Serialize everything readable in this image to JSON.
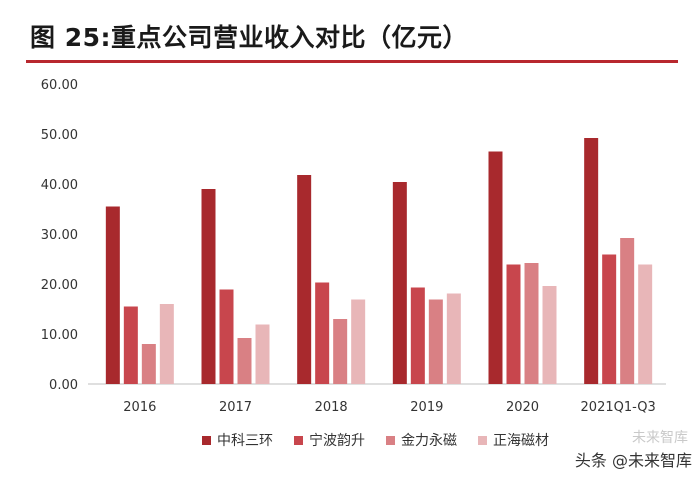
{
  "title": "图  25:重点公司营业收入对比（亿元）",
  "colors": {
    "accent": "#b8282e",
    "series": [
      "#a8292d",
      "#c8464d",
      "#d98084",
      "#e8b6b8"
    ]
  },
  "watermark": {
    "text": "头条 @未来智库",
    "logo": "未来智库"
  },
  "chart_data": {
    "type": "bar",
    "categories": [
      "2016",
      "2017",
      "2018",
      "2019",
      "2020",
      "2021Q1-Q3"
    ],
    "series": [
      {
        "name": "中科三环",
        "values": [
          35.5,
          39.0,
          41.8,
          40.4,
          46.5,
          49.2
        ]
      },
      {
        "name": "宁波韵升",
        "values": [
          15.5,
          18.9,
          20.3,
          19.3,
          23.9,
          25.9
        ]
      },
      {
        "name": "金力永磁",
        "values": [
          8.0,
          9.2,
          13.0,
          16.9,
          24.2,
          29.2
        ]
      },
      {
        "name": "正海磁材",
        "values": [
          16.0,
          11.9,
          16.9,
          18.1,
          19.6,
          23.9
        ]
      }
    ],
    "ylim": [
      0,
      60
    ],
    "yticks": [
      "0.00",
      "10.00",
      "20.00",
      "30.00",
      "40.00",
      "50.00",
      "60.00"
    ],
    "grid": false,
    "legend": "bottom"
  }
}
